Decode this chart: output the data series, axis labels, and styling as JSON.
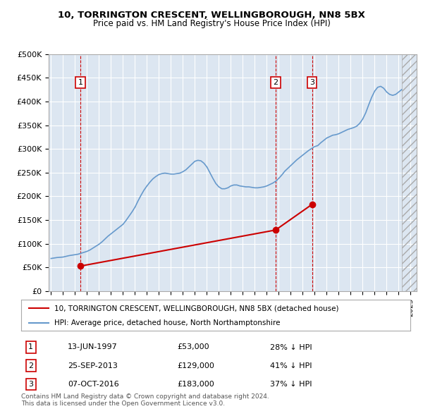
{
  "title1": "10, TORRINGTON CRESCENT, WELLINGBOROUGH, NN8 5BX",
  "title2": "Price paid vs. HM Land Registry's House Price Index (HPI)",
  "legend_line1": "10, TORRINGTON CRESCENT, WELLINGBOROUGH, NN8 5BX (detached house)",
  "legend_line2": "HPI: Average price, detached house, North Northamptonshire",
  "footnote": "Contains HM Land Registry data © Crown copyright and database right 2024.\nThis data is licensed under the Open Government Licence v3.0.",
  "transactions": [
    {
      "num": 1,
      "date": "13-JUN-1997",
      "price": 53000,
      "hpi_rel": "28% ↓ HPI",
      "x_year": 1997.45
    },
    {
      "num": 2,
      "date": "25-SEP-2013",
      "price": 129000,
      "hpi_rel": "41% ↓ HPI",
      "x_year": 2013.73
    },
    {
      "num": 3,
      "date": "07-OCT-2016",
      "price": 183000,
      "hpi_rel": "37% ↓ HPI",
      "x_year": 2016.77
    }
  ],
  "hpi_color": "#6699cc",
  "price_color": "#cc0000",
  "dashed_line_color": "#cc0000",
  "marker_color": "#cc0000",
  "background_color": "#dce6f1",
  "plot_bg_color": "#dce6f1",
  "grid_color": "#ffffff",
  "ylim": [
    0,
    500000
  ],
  "yticks": [
    0,
    50000,
    100000,
    150000,
    200000,
    250000,
    300000,
    350000,
    400000,
    450000,
    500000
  ],
  "xlabel_years": [
    1995,
    1996,
    1997,
    1998,
    1999,
    2000,
    2001,
    2002,
    2003,
    2004,
    2005,
    2006,
    2007,
    2008,
    2009,
    2010,
    2011,
    2012,
    2013,
    2014,
    2015,
    2016,
    2017,
    2018,
    2019,
    2020,
    2021,
    2022,
    2023,
    2024,
    2025
  ],
  "hpi_series_x": [
    1995.0,
    1995.25,
    1995.5,
    1995.75,
    1996.0,
    1996.25,
    1996.5,
    1996.75,
    1997.0,
    1997.25,
    1997.5,
    1997.75,
    1998.0,
    1998.25,
    1998.5,
    1998.75,
    1999.0,
    1999.25,
    1999.5,
    1999.75,
    2000.0,
    2000.25,
    2000.5,
    2000.75,
    2001.0,
    2001.25,
    2001.5,
    2001.75,
    2002.0,
    2002.25,
    2002.5,
    2002.75,
    2003.0,
    2003.25,
    2003.5,
    2003.75,
    2004.0,
    2004.25,
    2004.5,
    2004.75,
    2005.0,
    2005.25,
    2005.5,
    2005.75,
    2006.0,
    2006.25,
    2006.5,
    2006.75,
    2007.0,
    2007.25,
    2007.5,
    2007.75,
    2008.0,
    2008.25,
    2008.5,
    2008.75,
    2009.0,
    2009.25,
    2009.5,
    2009.75,
    2010.0,
    2010.25,
    2010.5,
    2010.75,
    2011.0,
    2011.25,
    2011.5,
    2011.75,
    2012.0,
    2012.25,
    2012.5,
    2012.75,
    2013.0,
    2013.25,
    2013.5,
    2013.75,
    2014.0,
    2014.25,
    2014.5,
    2014.75,
    2015.0,
    2015.25,
    2015.5,
    2015.75,
    2016.0,
    2016.25,
    2016.5,
    2016.75,
    2017.0,
    2017.25,
    2017.5,
    2017.75,
    2018.0,
    2018.25,
    2018.5,
    2018.75,
    2019.0,
    2019.25,
    2019.5,
    2019.75,
    2020.0,
    2020.25,
    2020.5,
    2020.75,
    2021.0,
    2021.25,
    2021.5,
    2021.75,
    2022.0,
    2022.25,
    2022.5,
    2022.75,
    2023.0,
    2023.25,
    2023.5,
    2023.75,
    2024.0,
    2024.25
  ],
  "hpi_series_y": [
    69000,
    70000,
    71000,
    71500,
    72000,
    73500,
    75000,
    76000,
    77000,
    78000,
    80000,
    82000,
    84000,
    87000,
    91000,
    95000,
    99000,
    104000,
    110000,
    116000,
    121000,
    126000,
    131000,
    136000,
    141000,
    149000,
    158000,
    167000,
    177000,
    190000,
    202000,
    213000,
    222000,
    230000,
    237000,
    242000,
    246000,
    248000,
    249000,
    248000,
    247000,
    247000,
    248000,
    249000,
    252000,
    256000,
    262000,
    268000,
    274000,
    276000,
    275000,
    270000,
    262000,
    250000,
    238000,
    227000,
    220000,
    216000,
    216000,
    218000,
    222000,
    224000,
    224000,
    222000,
    221000,
    220000,
    220000,
    219000,
    218000,
    218000,
    219000,
    220000,
    222000,
    225000,
    228000,
    232000,
    238000,
    245000,
    253000,
    259000,
    265000,
    271000,
    277000,
    282000,
    287000,
    292000,
    297000,
    301000,
    305000,
    307000,
    313000,
    318000,
    323000,
    326000,
    329000,
    330000,
    332000,
    335000,
    338000,
    341000,
    343000,
    345000,
    348000,
    354000,
    363000,
    376000,
    393000,
    409000,
    422000,
    430000,
    432000,
    428000,
    420000,
    415000,
    413000,
    415000,
    420000,
    425000
  ],
  "sold_line_x": [
    1997.45,
    2013.73,
    2016.77
  ],
  "sold_line_y": [
    53000,
    129000,
    183000
  ],
  "hatch_x_start": 2024.25,
  "xlim": [
    1994.8,
    2025.5
  ]
}
